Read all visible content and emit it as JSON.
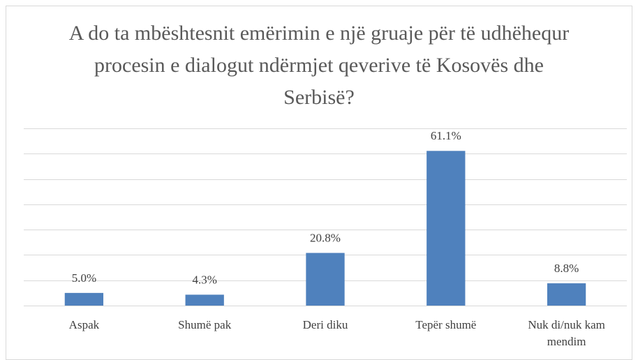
{
  "chart_data": {
    "type": "bar",
    "title": "A do ta mbështesnit emërimin e një gruaje për të udhëhequr procesin e dialogut ndërmjet qeverive të Kosovës dhe Serbisë?",
    "categories": [
      "Aspak",
      "Shumë pak",
      "Deri diku",
      "Tepër shumë",
      "Nuk di/nuk kam mendim"
    ],
    "values": [
      5.0,
      4.3,
      20.8,
      61.1,
      8.8
    ],
    "value_labels": [
      "5.0%",
      "4.3%",
      "20.8%",
      "61.1%",
      "8.8%"
    ],
    "color": "#4f81bd",
    "ylim": [
      0,
      70
    ],
    "yticks": [
      0,
      10,
      20,
      30,
      40,
      50,
      60,
      70
    ],
    "grid": true
  }
}
